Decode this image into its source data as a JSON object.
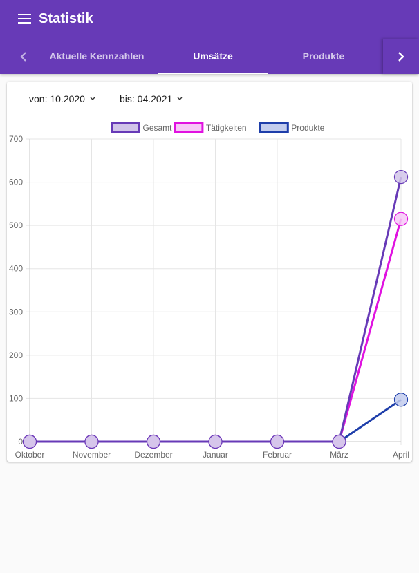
{
  "app": {
    "title": "Statistik",
    "menu_icon": "menu-icon"
  },
  "tabs": {
    "items": [
      {
        "label": "Aktuelle Kennzahlen",
        "active": false
      },
      {
        "label": "Umsätze",
        "active": true
      },
      {
        "label": "Produkte",
        "active": false
      }
    ],
    "prev_icon": "chevron-left-icon",
    "next_icon": "chevron-right-icon"
  },
  "filters": {
    "from_label": "von: 10.2020",
    "to_label": "bis: 04.2021",
    "caret_icon": "caret-down-icon"
  },
  "chart_data": {
    "type": "line",
    "categories": [
      "Oktober",
      "November",
      "Dezember",
      "Januar",
      "Februar",
      "März",
      "April"
    ],
    "series": [
      {
        "name": "Gesamt",
        "values": [
          0,
          0,
          0,
          0,
          0,
          0,
          612
        ],
        "color": "#673ab7",
        "fill": "#d1c4e9"
      },
      {
        "name": "Tätigkeiten",
        "values": [
          0,
          0,
          0,
          0,
          0,
          0,
          515
        ],
        "color": "#e012e0",
        "fill": "#f7c8f7"
      },
      {
        "name": "Produkte",
        "values": [
          0,
          0,
          0,
          0,
          0,
          0,
          97
        ],
        "color": "#1e3eaa",
        "fill": "#c3cdee"
      }
    ],
    "ylim": [
      0,
      700
    ],
    "yticks": [
      0,
      100,
      200,
      300,
      400,
      500,
      600,
      700
    ],
    "grid": true,
    "legend_position": "top-center"
  }
}
